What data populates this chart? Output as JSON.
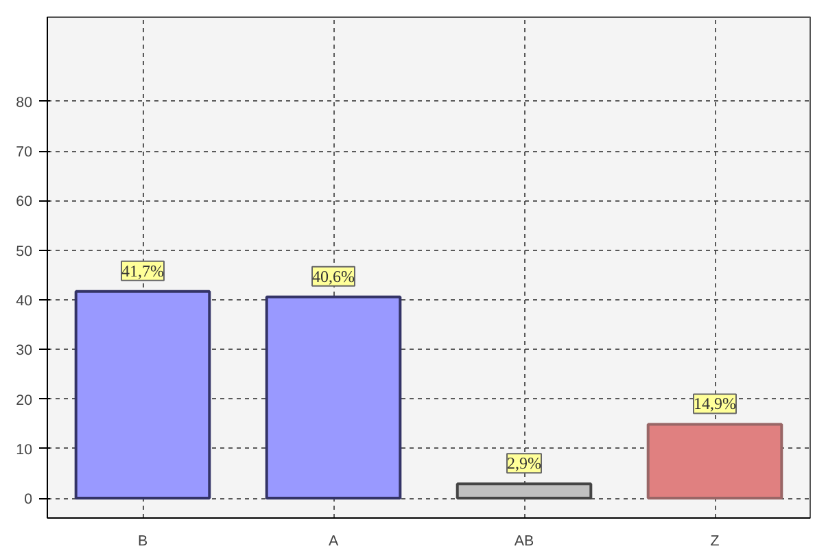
{
  "chart_data": {
    "type": "bar",
    "categories": [
      "B",
      "A",
      "AB",
      "Z"
    ],
    "values": [
      41.7,
      40.6,
      2.9,
      14.9
    ],
    "colors": [
      "#9999ff",
      "#9999ff",
      "#c0c0c0",
      "#e08080"
    ],
    "value_labels": [
      "41,7%",
      "40,6%",
      "2,9%",
      "14,9%"
    ],
    "ylim": [
      -4,
      97
    ],
    "yticks": [
      0,
      10,
      20,
      30,
      40,
      50,
      60,
      70,
      80
    ],
    "grid": true
  }
}
